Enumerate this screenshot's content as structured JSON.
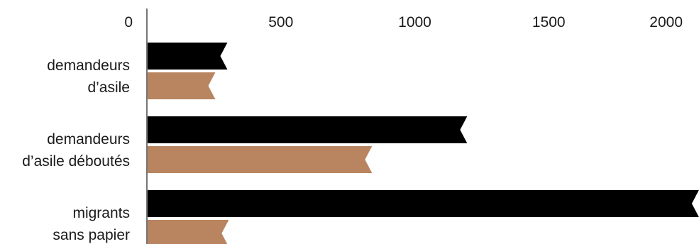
{
  "chart_data": {
    "type": "bar",
    "orientation": "horizontal",
    "title": "",
    "xlabel": "",
    "ylabel": "",
    "xlim": [
      0,
      2050
    ],
    "x_ticks": [
      "0",
      "500",
      "1000",
      "1500",
      "2000"
    ],
    "x_tick_values": [
      0,
      500,
      1000,
      1500,
      2000
    ],
    "categories": [
      [
        "demandeurs",
        "d’asile"
      ],
      [
        "demandeurs",
        "d’asile déboutés"
      ],
      [
        "migrants",
        "sans papier"
      ]
    ],
    "series": [
      {
        "values": [
          290,
          1185,
          2050
        ],
        "color": "#000000"
      },
      {
        "values": [
          245,
          830,
          295
        ],
        "color": "#b98460"
      }
    ],
    "grid": false,
    "legend": "none"
  }
}
